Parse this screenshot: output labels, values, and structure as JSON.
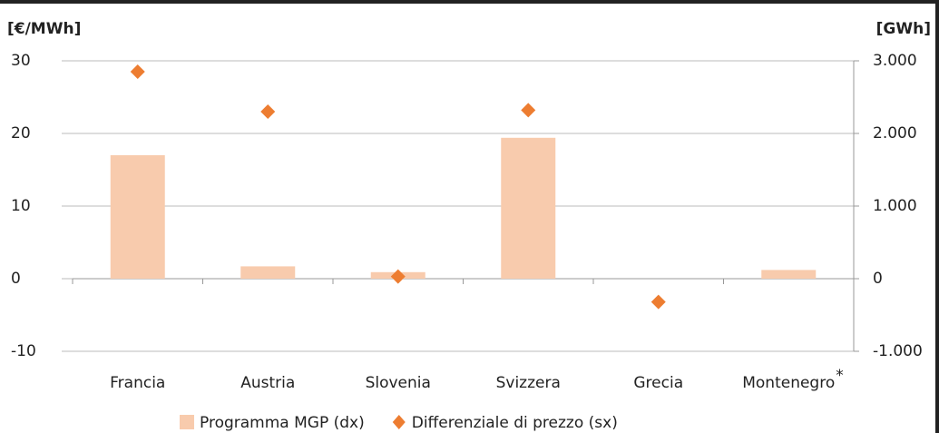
{
  "chart_data": {
    "type": "bar-scatter",
    "y_label": "[€/MWh]",
    "y2_label": "[GWh]",
    "categories": [
      "Francia",
      "Austria",
      "Slovenia",
      "Svizzera",
      "Grecia",
      "Montenegro"
    ],
    "footnote_mark": "*",
    "series": [
      {
        "name": "Programma MGP (dx)",
        "type": "bar",
        "axis": "y2",
        "color": "#f8cbad",
        "values": [
          1700,
          170,
          90,
          1940,
          0,
          120
        ]
      },
      {
        "name": "Differenziale di prezzo (sx)",
        "type": "scatter",
        "color": "#ed7d31",
        "values": [
          28.5,
          23,
          0.3,
          23.2,
          -3.2,
          null
        ]
      }
    ],
    "ylim": [
      -10,
      30
    ],
    "yticks": [
      -10,
      0,
      10,
      20,
      30
    ],
    "y2lim": [
      -1000,
      3000
    ],
    "y2ticks": [
      {
        "value": -1000,
        "label": "-1.000"
      },
      0,
      {
        "value": 1000,
        "label": "1.000"
      },
      {
        "value": 2000,
        "label": "2.000"
      },
      {
        "value": 3000,
        "label": "3.000"
      }
    ]
  }
}
